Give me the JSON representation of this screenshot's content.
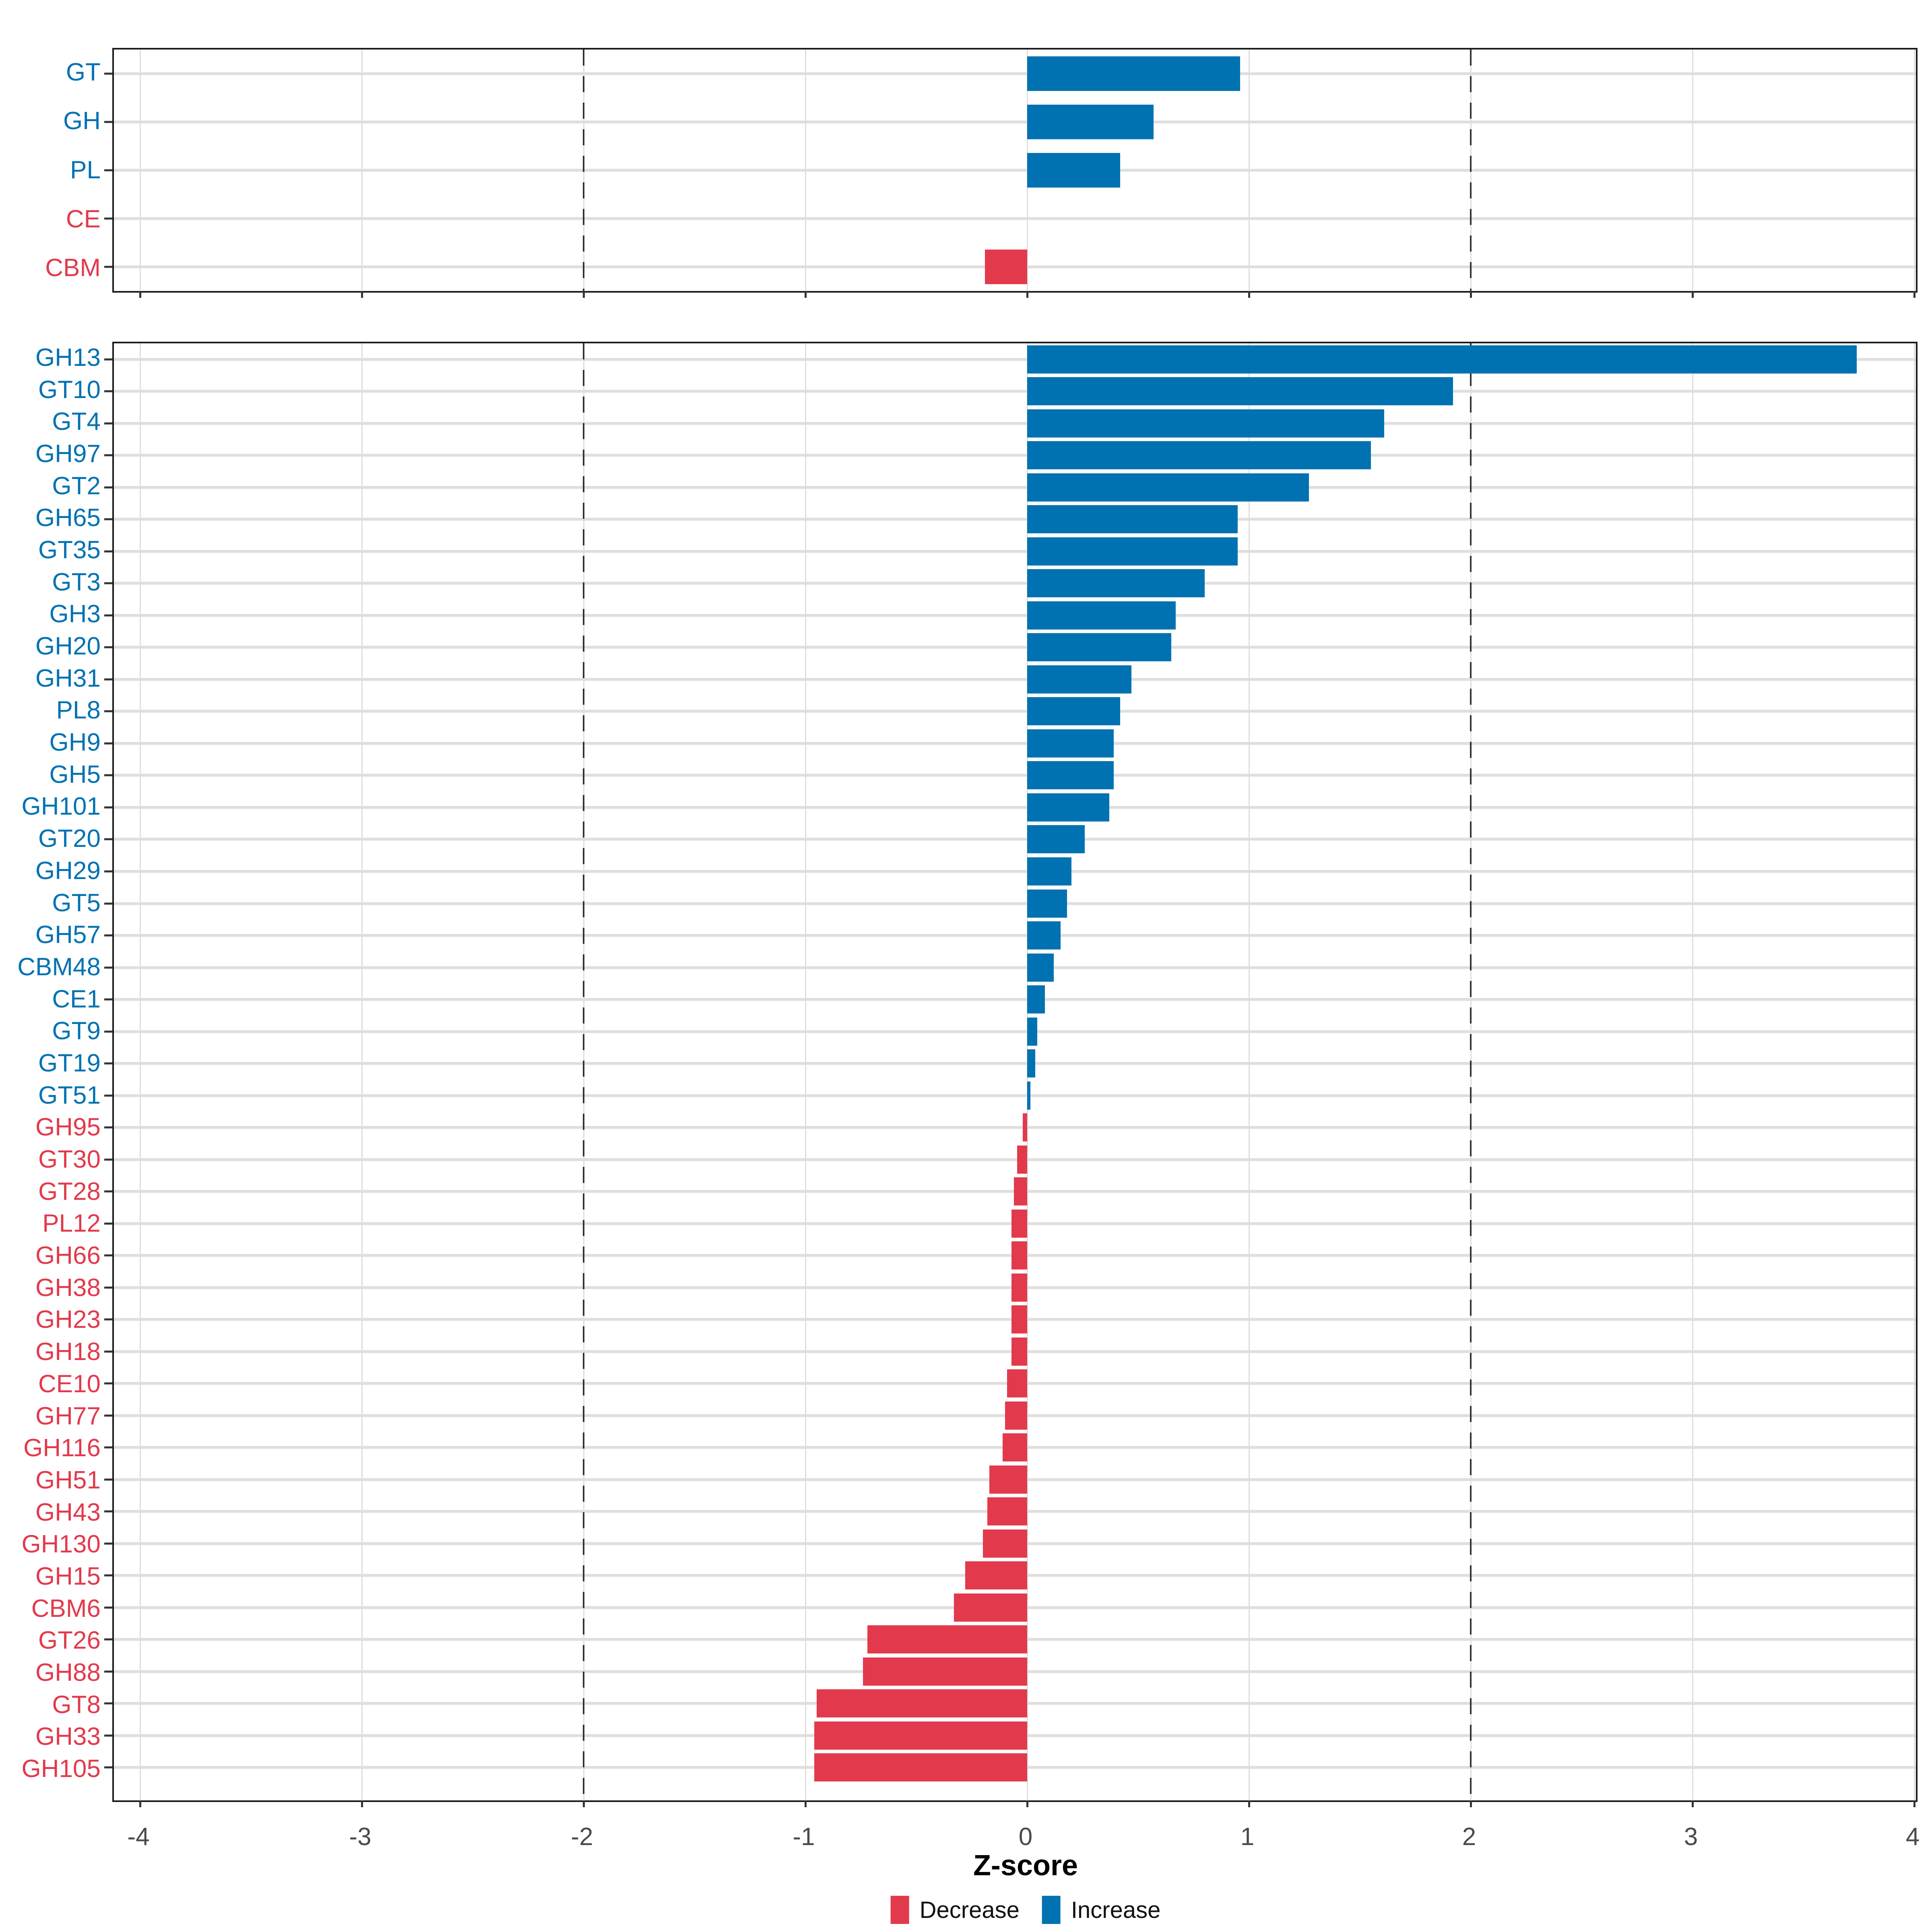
{
  "axis": {
    "label": "Z-score",
    "ticks": [
      "-4",
      "-3",
      "-2",
      "-1",
      "0",
      "1",
      "2",
      "3",
      "4"
    ],
    "tick_values": [
      -4,
      -3,
      -2,
      -1,
      0,
      1,
      2,
      3,
      4
    ],
    "dashed_at": [
      -2,
      2
    ],
    "xlim": [
      -4.12,
      4.02
    ]
  },
  "legend": {
    "position": "bottom-center",
    "items": [
      {
        "label": "Decrease",
        "color": "#E23A4C"
      },
      {
        "label": "Increase",
        "color": "#0072B2"
      }
    ]
  },
  "colors": {
    "increase": "#0072B2",
    "decrease": "#E23A4C",
    "grid": "#DEDEDE",
    "dashed_line": "#333333",
    "panel_border": "#1A1A1A",
    "axis_text": "#4A4A4A",
    "title_text": "#000000"
  },
  "chart_data": [
    {
      "id": "top",
      "type": "bar",
      "orientation": "horizontal",
      "title": "",
      "xlabel": "Z-score",
      "ylabel": "",
      "xlim": [
        -4.12,
        4.02
      ],
      "grid": true,
      "categories": [
        "GT",
        "GH",
        "PL",
        "CE",
        "CBM"
      ],
      "values": [
        0.96,
        0.57,
        0.42,
        0.0,
        -0.19
      ]
    },
    {
      "id": "bottom",
      "type": "bar",
      "orientation": "horizontal",
      "title": "",
      "xlabel": "Z-score",
      "ylabel": "",
      "xlim": [
        -4.12,
        4.02
      ],
      "grid": true,
      "categories": [
        "GH13",
        "GT10",
        "GT4",
        "GH97",
        "GT2",
        "GH65",
        "GT35",
        "GT3",
        "GH3",
        "GH20",
        "GH31",
        "PL8",
        "GH9",
        "GH5",
        "GH101",
        "GT20",
        "GH29",
        "GT5",
        "GH57",
        "CBM48",
        "CE1",
        "GT9",
        "GT19",
        "GT51",
        "GH95",
        "GT30",
        "GT28",
        "PL12",
        "GH66",
        "GH38",
        "GH23",
        "GH18",
        "CE10",
        "GH77",
        "GH116",
        "GH51",
        "GH43",
        "GH130",
        "GH15",
        "CBM6",
        "GT26",
        "GH88",
        "GT8",
        "GH33",
        "GH105"
      ],
      "values": [
        3.74,
        1.92,
        1.61,
        1.55,
        1.27,
        0.95,
        0.95,
        0.8,
        0.67,
        0.65,
        0.47,
        0.42,
        0.39,
        0.39,
        0.37,
        0.26,
        0.2,
        0.18,
        0.15,
        0.12,
        0.08,
        0.045,
        0.037,
        0.015,
        -0.02,
        -0.045,
        -0.06,
        -0.07,
        -0.07,
        -0.07,
        -0.07,
        -0.07,
        -0.09,
        -0.1,
        -0.11,
        -0.17,
        -0.18,
        -0.2,
        -0.28,
        -0.33,
        -0.72,
        -0.74,
        -0.95,
        -0.96,
        -0.96
      ]
    }
  ]
}
